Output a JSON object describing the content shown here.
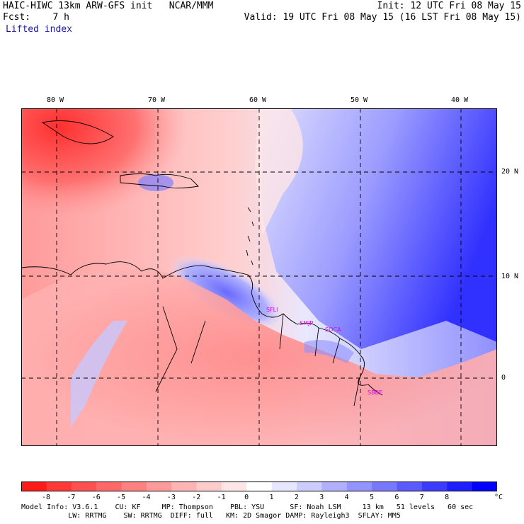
{
  "header": {
    "line1_left": "HAIC-HIWC 13km ARW-GFS init   NCAR/MMM",
    "line2_left": "Fcst:    7 h",
    "line3_left": "Lifted index",
    "line1_right": "Init: 12 UTC Fri 08 May 15",
    "line2_right": "Valid: 19 UTC Fri 08 May 15 (16 LST Fri 08 May 15)"
  },
  "map": {
    "longitude_labels": [
      "80 W",
      "70 W",
      "60 W",
      "50 W",
      "40 W"
    ],
    "latitude_labels": [
      "20 N",
      "10 N",
      "0"
    ],
    "stations": [
      "SFLI",
      "SMJP",
      "SOCA",
      "SBBE"
    ]
  },
  "colorbar": {
    "unit": "°C",
    "tick_labels": [
      "-8",
      "-7",
      "-6",
      "-5",
      "-4",
      "-3",
      "-2",
      "-1",
      "0",
      "1",
      "2",
      "3",
      "4",
      "5",
      "6",
      "7",
      "8"
    ],
    "colors": [
      "#ff1a1a",
      "#ff3838",
      "#ff5050",
      "#ff6868",
      "#ff8080",
      "#ff9a9a",
      "#ffb4b4",
      "#ffcccc",
      "#ffe6e6",
      "#ffffff",
      "#e6e6ff",
      "#ccccff",
      "#b0b0ff",
      "#9494ff",
      "#7878ff",
      "#5a5aff",
      "#3c3cff",
      "#1e1eff",
      "#0000ff"
    ]
  },
  "model_info": {
    "line1": "Model Info: V3.6.1    CU: KF     MP: Thompson    PBL: YSU      SF: Noah LSM     13 km   51 levels   60 sec",
    "line2": "           LW: RRTMG    SW: RRTMG  DIFF: full   KM: 2D Smagor DAMP: Rayleigh3  SFLAY: MM5"
  }
}
